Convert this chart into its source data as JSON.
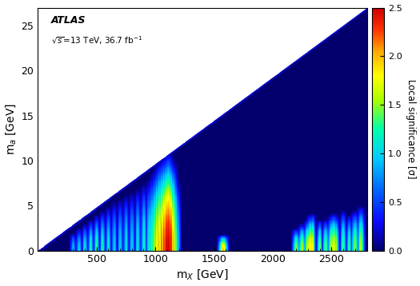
{
  "xlabel": "m$_{X}$ [GeV]",
  "ylabel": "m$_{a}$ [GeV]",
  "colorbar_label": "Local significance [σ]",
  "xlim": [
    0,
    2800
  ],
  "ylim": [
    0,
    27
  ],
  "clim": [
    0,
    2.5
  ],
  "colorbar_ticks": [
    0,
    0.5,
    1,
    1.5,
    2,
    2.5
  ],
  "xticks": [
    500,
    1000,
    1500,
    2000,
    2500
  ],
  "yticks": [
    0,
    5,
    10,
    15,
    20,
    25
  ],
  "nx": 560,
  "ny": 270,
  "hotspots_main": [
    {
      "mx": 950,
      "ma_max": 8.0,
      "amp": 1.2,
      "wx": 4
    },
    {
      "mx": 970,
      "ma_max": 8.5,
      "amp": 1.4,
      "wx": 3
    },
    {
      "mx": 990,
      "ma_max": 9.0,
      "amp": 1.6,
      "wx": 3
    },
    {
      "mx": 1010,
      "ma_max": 9.5,
      "amp": 1.8,
      "wx": 3
    },
    {
      "mx": 1030,
      "ma_max": 10.0,
      "amp": 2.0,
      "wx": 3
    },
    {
      "mx": 1050,
      "ma_max": 10.2,
      "amp": 2.2,
      "wx": 3
    },
    {
      "mx": 1070,
      "ma_max": 10.5,
      "amp": 2.3,
      "wx": 4
    },
    {
      "mx": 1090,
      "ma_max": 10.7,
      "amp": 2.5,
      "wx": 4
    },
    {
      "mx": 1110,
      "ma_max": 11.0,
      "amp": 2.5,
      "wx": 5
    },
    {
      "mx": 1130,
      "ma_max": 10.5,
      "amp": 2.4,
      "wx": 4
    },
    {
      "mx": 1150,
      "ma_max": 10.0,
      "amp": 2.0,
      "wx": 4
    },
    {
      "mx": 1170,
      "ma_max": 9.0,
      "amp": 1.5,
      "wx": 3
    },
    {
      "mx": 1190,
      "ma_max": 8.0,
      "amp": 1.0,
      "wx": 3
    },
    {
      "mx": 300,
      "ma_max": 2.0,
      "amp": 0.9,
      "wx": 3
    },
    {
      "mx": 350,
      "ma_max": 2.5,
      "amp": 1.0,
      "wx": 3
    },
    {
      "mx": 400,
      "ma_max": 3.0,
      "amp": 1.1,
      "wx": 3
    },
    {
      "mx": 450,
      "ma_max": 3.5,
      "amp": 1.2,
      "wx": 3
    },
    {
      "mx": 500,
      "ma_max": 4.0,
      "amp": 1.3,
      "wx": 3
    },
    {
      "mx": 550,
      "ma_max": 4.5,
      "amp": 1.2,
      "wx": 3
    },
    {
      "mx": 600,
      "ma_max": 5.0,
      "amp": 1.1,
      "wx": 3
    },
    {
      "mx": 650,
      "ma_max": 5.5,
      "amp": 1.0,
      "wx": 3
    },
    {
      "mx": 700,
      "ma_max": 5.8,
      "amp": 1.0,
      "wx": 3
    },
    {
      "mx": 750,
      "ma_max": 6.2,
      "amp": 1.1,
      "wx": 3
    },
    {
      "mx": 800,
      "ma_max": 6.5,
      "amp": 1.0,
      "wx": 3
    },
    {
      "mx": 850,
      "ma_max": 7.0,
      "amp": 1.1,
      "wx": 3
    },
    {
      "mx": 900,
      "ma_max": 7.5,
      "amp": 1.2,
      "wx": 3
    },
    {
      "mx": 1580,
      "ma_max": 1.8,
      "amp": 2.0,
      "wx": 5
    },
    {
      "mx": 2200,
      "ma_max": 2.5,
      "amp": 1.5,
      "wx": 4
    },
    {
      "mx": 2250,
      "ma_max": 3.0,
      "amp": 1.6,
      "wx": 4
    },
    {
      "mx": 2300,
      "ma_max": 3.5,
      "amp": 1.8,
      "wx": 4
    },
    {
      "mx": 2320,
      "ma_max": 4.0,
      "amp": 1.9,
      "wx": 4
    },
    {
      "mx": 2340,
      "ma_max": 4.2,
      "amp": 1.8,
      "wx": 3
    },
    {
      "mx": 2400,
      "ma_max": 3.5,
      "amp": 1.5,
      "wx": 3
    },
    {
      "mx": 2450,
      "ma_max": 3.5,
      "amp": 1.5,
      "wx": 3
    },
    {
      "mx": 2500,
      "ma_max": 4.0,
      "amp": 1.7,
      "wx": 4
    },
    {
      "mx": 2520,
      "ma_max": 4.2,
      "amp": 1.8,
      "wx": 4
    },
    {
      "mx": 2540,
      "ma_max": 4.0,
      "amp": 1.6,
      "wx": 3
    },
    {
      "mx": 2600,
      "ma_max": 4.5,
      "amp": 1.4,
      "wx": 3
    },
    {
      "mx": 2650,
      "ma_max": 4.0,
      "amp": 1.3,
      "wx": 3
    },
    {
      "mx": 2700,
      "ma_max": 4.5,
      "amp": 1.5,
      "wx": 4
    },
    {
      "mx": 2750,
      "ma_max": 5.0,
      "amp": 1.6,
      "wx": 4
    }
  ],
  "cmap_colors": [
    [
      0.0,
      "#03006e"
    ],
    [
      0.12,
      "#0a0aff"
    ],
    [
      0.25,
      "#0066ff"
    ],
    [
      0.38,
      "#00ccff"
    ],
    [
      0.5,
      "#00ffaa"
    ],
    [
      0.62,
      "#aaff00"
    ],
    [
      0.72,
      "#ffff00"
    ],
    [
      0.82,
      "#ffaa00"
    ],
    [
      0.91,
      "#ff3300"
    ],
    [
      1.0,
      "#cc0000"
    ]
  ]
}
